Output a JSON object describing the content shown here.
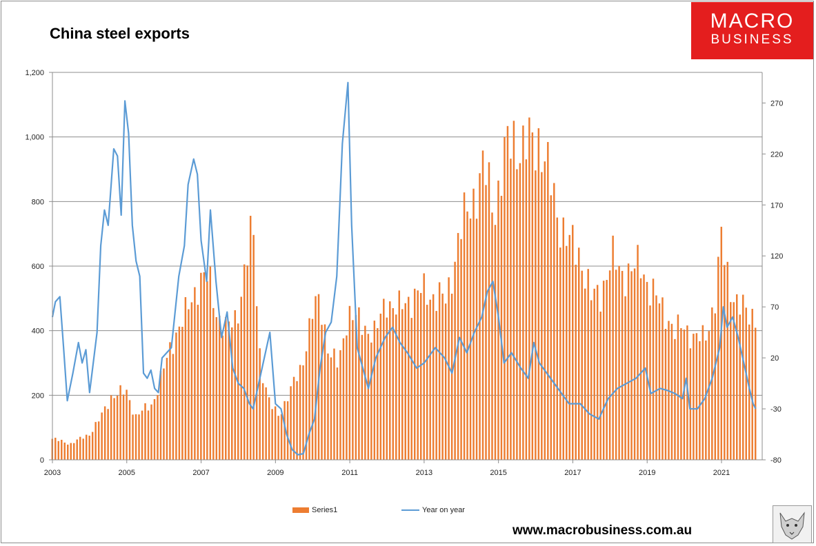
{
  "chart_data": {
    "type": "bar+line",
    "title": "China steel exports",
    "x_tick_labels": [
      "2003",
      "2005",
      "2007",
      "2009",
      "2011",
      "2013",
      "2015",
      "2017",
      "2019",
      "2021"
    ],
    "x_start_year": 2003,
    "x_end_year": 2021.92,
    "y_left": {
      "range": [
        0,
        1200
      ],
      "ticks": [
        "0",
        "200",
        "400",
        "600",
        "800",
        "1,000",
        "1,200"
      ],
      "tick_values": [
        0,
        200,
        400,
        600,
        800,
        1000,
        1200
      ]
    },
    "y_right": {
      "range": [
        -80,
        300
      ],
      "ticks": [
        "-80",
        "-30",
        "20",
        "70",
        "120",
        "170",
        "220",
        "270"
      ],
      "tick_values": [
        -80,
        -30,
        20,
        70,
        120,
        170,
        220,
        270
      ]
    },
    "series": [
      {
        "name": "Series1",
        "type": "bar",
        "axis": "left",
        "color": "#ed7d31",
        "keyframes": [
          [
            2003.0,
            65
          ],
          [
            2003.5,
            50
          ],
          [
            2004.0,
            80
          ],
          [
            2004.3,
            130
          ],
          [
            2004.6,
            200
          ],
          [
            2005.0,
            210
          ],
          [
            2005.25,
            135
          ],
          [
            2005.7,
            175
          ],
          [
            2006.0,
            280
          ],
          [
            2006.3,
            390
          ],
          [
            2006.6,
            450
          ],
          [
            2006.95,
            560
          ],
          [
            2007.2,
            560
          ],
          [
            2007.45,
            450
          ],
          [
            2007.7,
            400
          ],
          [
            2007.95,
            440
          ],
          [
            2008.2,
            600
          ],
          [
            2008.4,
            720
          ],
          [
            2008.6,
            300
          ],
          [
            2008.85,
            170
          ],
          [
            2009.1,
            140
          ],
          [
            2009.4,
            210
          ],
          [
            2009.7,
            290
          ],
          [
            2010.0,
            450
          ],
          [
            2010.2,
            500
          ],
          [
            2010.45,
            330
          ],
          [
            2010.7,
            290
          ],
          [
            2010.95,
            460
          ],
          [
            2011.3,
            420
          ],
          [
            2011.7,
            390
          ],
          [
            2012.0,
            500
          ],
          [
            2012.3,
            460
          ],
          [
            2012.6,
            500
          ],
          [
            2012.95,
            520
          ],
          [
            2013.3,
            510
          ],
          [
            2013.6,
            490
          ],
          [
            2013.95,
            700
          ],
          [
            2014.25,
            790
          ],
          [
            2014.6,
            900
          ],
          [
            2014.9,
            780
          ],
          [
            2015.2,
            950
          ],
          [
            2015.4,
            1000
          ],
          [
            2015.7,
            960
          ],
          [
            2016.1,
            1000
          ],
          [
            2016.35,
            880
          ],
          [
            2016.6,
            760
          ],
          [
            2016.9,
            670
          ],
          [
            2017.2,
            640
          ],
          [
            2017.5,
            500
          ],
          [
            2017.75,
            520
          ],
          [
            2018.05,
            620
          ],
          [
            2018.35,
            580
          ],
          [
            2018.6,
            580
          ],
          [
            2018.85,
            610
          ],
          [
            2019.1,
            520
          ],
          [
            2019.5,
            460
          ],
          [
            2019.75,
            390
          ],
          [
            2020.0,
            420
          ],
          [
            2020.3,
            370
          ],
          [
            2020.55,
            380
          ],
          [
            2020.85,
            500
          ],
          [
            2021.0,
            680
          ],
          [
            2021.2,
            560
          ],
          [
            2021.45,
            470
          ],
          [
            2021.7,
            460
          ],
          [
            2021.92,
            450
          ]
        ]
      },
      {
        "name": "Year on year",
        "type": "line",
        "axis": "right",
        "color": "#5b9bd5",
        "keyframes": [
          [
            2003.0,
            60
          ],
          [
            2003.08,
            75
          ],
          [
            2003.2,
            80
          ],
          [
            2003.3,
            30
          ],
          [
            2003.4,
            -22
          ],
          [
            2003.55,
            5
          ],
          [
            2003.7,
            35
          ],
          [
            2003.8,
            15
          ],
          [
            2003.9,
            28
          ],
          [
            2004.0,
            -14
          ],
          [
            2004.2,
            45
          ],
          [
            2004.3,
            130
          ],
          [
            2004.4,
            165
          ],
          [
            2004.5,
            150
          ],
          [
            2004.65,
            225
          ],
          [
            2004.75,
            218
          ],
          [
            2004.85,
            160
          ],
          [
            2004.95,
            272
          ],
          [
            2005.05,
            240
          ],
          [
            2005.15,
            150
          ],
          [
            2005.25,
            115
          ],
          [
            2005.35,
            100
          ],
          [
            2005.45,
            5
          ],
          [
            2005.55,
            0
          ],
          [
            2005.65,
            8
          ],
          [
            2005.75,
            -10
          ],
          [
            2005.85,
            -14
          ],
          [
            2005.95,
            20
          ],
          [
            2006.2,
            30
          ],
          [
            2006.4,
            100
          ],
          [
            2006.55,
            130
          ],
          [
            2006.65,
            190
          ],
          [
            2006.8,
            215
          ],
          [
            2006.9,
            200
          ],
          [
            2007.0,
            135
          ],
          [
            2007.15,
            95
          ],
          [
            2007.25,
            165
          ],
          [
            2007.4,
            95
          ],
          [
            2007.55,
            40
          ],
          [
            2007.7,
            65
          ],
          [
            2007.85,
            10
          ],
          [
            2008.0,
            -5
          ],
          [
            2008.15,
            -10
          ],
          [
            2008.3,
            -25
          ],
          [
            2008.4,
            -30
          ],
          [
            2008.55,
            -5
          ],
          [
            2008.7,
            20
          ],
          [
            2008.85,
            45
          ],
          [
            2009.0,
            -25
          ],
          [
            2009.15,
            -30
          ],
          [
            2009.3,
            -55
          ],
          [
            2009.45,
            -70
          ],
          [
            2009.6,
            -75
          ],
          [
            2009.75,
            -74
          ],
          [
            2009.9,
            -55
          ],
          [
            2010.05,
            -40
          ],
          [
            2010.2,
            10
          ],
          [
            2010.35,
            45
          ],
          [
            2010.5,
            55
          ],
          [
            2010.65,
            100
          ],
          [
            2010.8,
            230
          ],
          [
            2010.95,
            290
          ],
          [
            2011.05,
            150
          ],
          [
            2011.2,
            30
          ],
          [
            2011.35,
            10
          ],
          [
            2011.5,
            -10
          ],
          [
            2011.7,
            20
          ],
          [
            2011.95,
            40
          ],
          [
            2012.15,
            50
          ],
          [
            2012.35,
            35
          ],
          [
            2012.55,
            25
          ],
          [
            2012.8,
            10
          ],
          [
            2013.0,
            15
          ],
          [
            2013.3,
            30
          ],
          [
            2013.55,
            20
          ],
          [
            2013.75,
            5
          ],
          [
            2013.95,
            40
          ],
          [
            2014.15,
            25
          ],
          [
            2014.35,
            45
          ],
          [
            2014.55,
            60
          ],
          [
            2014.7,
            85
          ],
          [
            2014.85,
            95
          ],
          [
            2015.0,
            60
          ],
          [
            2015.15,
            15
          ],
          [
            2015.35,
            25
          ],
          [
            2015.6,
            10
          ],
          [
            2015.8,
            0
          ],
          [
            2015.95,
            35
          ],
          [
            2016.1,
            15
          ],
          [
            2016.3,
            5
          ],
          [
            2016.5,
            -5
          ],
          [
            2016.7,
            -15
          ],
          [
            2016.9,
            -25
          ],
          [
            2017.2,
            -25
          ],
          [
            2017.45,
            -35
          ],
          [
            2017.7,
            -40
          ],
          [
            2017.95,
            -20
          ],
          [
            2018.2,
            -10
          ],
          [
            2018.45,
            -5
          ],
          [
            2018.7,
            0
          ],
          [
            2018.95,
            10
          ],
          [
            2019.1,
            -15
          ],
          [
            2019.35,
            -10
          ],
          [
            2019.55,
            -12
          ],
          [
            2019.75,
            -15
          ],
          [
            2019.95,
            -20
          ],
          [
            2020.05,
            0
          ],
          [
            2020.15,
            -30
          ],
          [
            2020.35,
            -30
          ],
          [
            2020.55,
            -20
          ],
          [
            2020.75,
            0
          ],
          [
            2020.95,
            30
          ],
          [
            2021.05,
            70
          ],
          [
            2021.15,
            50
          ],
          [
            2021.3,
            60
          ],
          [
            2021.45,
            40
          ],
          [
            2021.6,
            15
          ],
          [
            2021.75,
            -10
          ],
          [
            2021.85,
            -25
          ],
          [
            2021.92,
            -30
          ]
        ]
      }
    ],
    "legend": {
      "position": "bottom",
      "items": [
        "Series1",
        "Year on year"
      ]
    }
  },
  "logo": {
    "line1": "MACRO",
    "line2": "BUSINESS"
  },
  "footer": {
    "url": "www.macrobusiness.com.au"
  },
  "colors": {
    "bar": "#ed7d31",
    "line": "#5b9bd5",
    "logo_bg": "#e41e1e"
  }
}
